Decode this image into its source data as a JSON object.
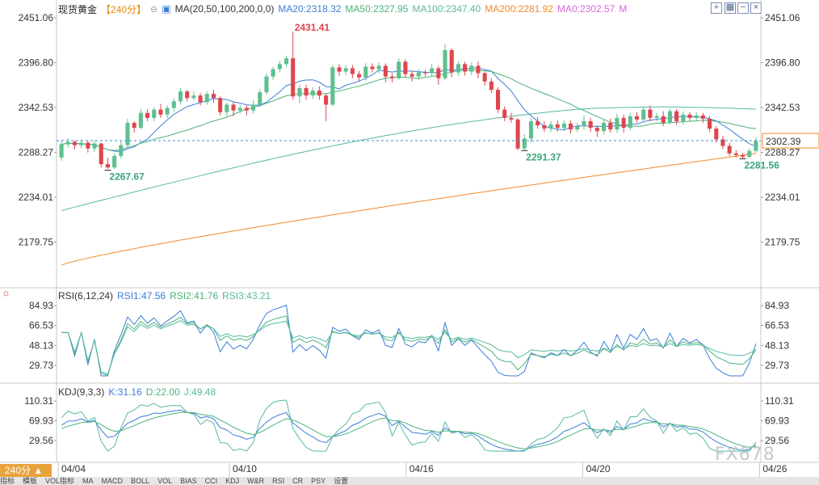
{
  "header": {
    "symbol": "现货黄金",
    "period": "【240分】",
    "ma_label": "MA(20,50,100,200,0,0)",
    "ma20": "MA20:2318.32",
    "ma50": "MA50:2327.95",
    "ma100": "MA100:2347.40",
    "ma200": "MA200:2281.92",
    "ma0": "MA0:2302.57",
    "m": "M"
  },
  "rsi_header": {
    "label": "RSI(6,12,24)",
    "rsi1": "RSI1:47.56",
    "rsi2": "RSI2:41.76",
    "rsi3": "RSI3:43.21"
  },
  "kdj_header": {
    "label": "KDJ(9,3,3)",
    "k": "K:31.16",
    "d": "D:22.00",
    "j": "J:49.48"
  },
  "period_button": "240分 ▲",
  "watermark": "FX678",
  "bottom_tabs": [
    "指标",
    "模板",
    "VOL指标",
    "MA",
    "MACD",
    "BOLL",
    "VOL",
    "BIAS",
    "CCI",
    "KDJ",
    "W&R",
    "RSI",
    "CR",
    "PSY",
    "设置"
  ],
  "colors": {
    "up": "#5fbf8f",
    "down": "#e0454c",
    "ma20": "#3b7dd8",
    "ma50": "#4cb37a",
    "ma100": "#56b8a4",
    "ma200": "#f08a2c",
    "price_line": "#3a8fd0"
  },
  "chart_data": [
    {
      "type": "candlestick",
      "price_axis": [
        "2451.06",
        "2396.80",
        "2342.53",
        "2288.27",
        "2234.01",
        "2179.75"
      ],
      "x_ticks": [
        "04/04",
        "04/10",
        "04/16",
        "04/20",
        "04/26"
      ],
      "current_price": "2302.39",
      "annotations": [
        {
          "text": "2431.41",
          "kind": "high"
        },
        {
          "text": "2267.67",
          "kind": "low"
        },
        {
          "text": "2291.37",
          "kind": "low"
        },
        {
          "text": "2281.56",
          "kind": "low"
        }
      ],
      "candles": [
        [
          2282,
          2298,
          2278,
          2302
        ],
        [
          2298,
          2301,
          2294,
          2305
        ],
        [
          2301,
          2297,
          2292,
          2303
        ],
        [
          2297,
          2300,
          2293,
          2304
        ],
        [
          2300,
          2293,
          2288,
          2302
        ],
        [
          2293,
          2299,
          2289,
          2303
        ],
        [
          2299,
          2274,
          2270,
          2300
        ],
        [
          2274,
          2270,
          2268,
          2282
        ],
        [
          2270,
          2284,
          2268,
          2287
        ],
        [
          2284,
          2297,
          2281,
          2302
        ],
        [
          2297,
          2324,
          2295,
          2329
        ],
        [
          2324,
          2318,
          2312,
          2326
        ],
        [
          2318,
          2336,
          2316,
          2341
        ],
        [
          2336,
          2330,
          2326,
          2340
        ],
        [
          2330,
          2340,
          2326,
          2343
        ],
        [
          2340,
          2334,
          2330,
          2347
        ],
        [
          2334,
          2342,
          2330,
          2345
        ],
        [
          2342,
          2350,
          2338,
          2354
        ],
        [
          2350,
          2362,
          2346,
          2366
        ],
        [
          2362,
          2354,
          2350,
          2364
        ],
        [
          2354,
          2357,
          2351,
          2362
        ],
        [
          2357,
          2349,
          2345,
          2360
        ],
        [
          2349,
          2359,
          2346,
          2362
        ],
        [
          2359,
          2354,
          2348,
          2364
        ],
        [
          2354,
          2337,
          2333,
          2356
        ],
        [
          2337,
          2346,
          2332,
          2349
        ],
        [
          2346,
          2339,
          2332,
          2350
        ],
        [
          2339,
          2342,
          2335,
          2346
        ],
        [
          2342,
          2339,
          2333,
          2345
        ],
        [
          2339,
          2346,
          2335,
          2351
        ],
        [
          2346,
          2361,
          2343,
          2364
        ],
        [
          2361,
          2380,
          2358,
          2384
        ],
        [
          2380,
          2389,
          2376,
          2392
        ],
        [
          2389,
          2395,
          2385,
          2399
        ],
        [
          2395,
          2402,
          2391,
          2405
        ],
        [
          2402,
          2356,
          2352,
          2431
        ],
        [
          2356,
          2366,
          2348,
          2370
        ],
        [
          2366,
          2357,
          2352,
          2370
        ],
        [
          2357,
          2363,
          2353,
          2367
        ],
        [
          2363,
          2357,
          2352,
          2368
        ],
        [
          2357,
          2346,
          2326,
          2360
        ],
        [
          2346,
          2391,
          2344,
          2394
        ],
        [
          2391,
          2386,
          2381,
          2395
        ],
        [
          2386,
          2390,
          2382,
          2394
        ],
        [
          2390,
          2383,
          2378,
          2394
        ],
        [
          2383,
          2379,
          2374,
          2387
        ],
        [
          2379,
          2392,
          2375,
          2396
        ],
        [
          2392,
          2389,
          2385,
          2396
        ],
        [
          2389,
          2393,
          2384,
          2397
        ],
        [
          2393,
          2380,
          2373,
          2396
        ],
        [
          2380,
          2378,
          2373,
          2384
        ],
        [
          2378,
          2398,
          2376,
          2402
        ],
        [
          2398,
          2383,
          2379,
          2401
        ],
        [
          2383,
          2380,
          2374,
          2387
        ],
        [
          2380,
          2385,
          2376,
          2389
        ],
        [
          2385,
          2384,
          2380,
          2388
        ],
        [
          2384,
          2390,
          2380,
          2395
        ],
        [
          2390,
          2378,
          2370,
          2393
        ],
        [
          2378,
          2412,
          2376,
          2419
        ],
        [
          2412,
          2385,
          2379,
          2414
        ],
        [
          2385,
          2395,
          2381,
          2399
        ],
        [
          2395,
          2386,
          2381,
          2398
        ],
        [
          2386,
          2393,
          2382,
          2397
        ],
        [
          2393,
          2384,
          2378,
          2398
        ],
        [
          2384,
          2374,
          2369,
          2386
        ],
        [
          2374,
          2364,
          2360,
          2378
        ],
        [
          2364,
          2340,
          2336,
          2367
        ],
        [
          2340,
          2330,
          2326,
          2344
        ],
        [
          2330,
          2328,
          2324,
          2336
        ],
        [
          2328,
          2293,
          2291,
          2330
        ],
        [
          2293,
          2305,
          2291,
          2310
        ],
        [
          2305,
          2326,
          2300,
          2330
        ],
        [
          2326,
          2321,
          2317,
          2331
        ],
        [
          2321,
          2317,
          2313,
          2326
        ],
        [
          2317,
          2322,
          2313,
          2326
        ],
        [
          2322,
          2318,
          2313,
          2327
        ],
        [
          2318,
          2323,
          2314,
          2327
        ],
        [
          2323,
          2316,
          2311,
          2327
        ],
        [
          2316,
          2320,
          2313,
          2324
        ],
        [
          2320,
          2326,
          2316,
          2333
        ],
        [
          2326,
          2318,
          2313,
          2330
        ],
        [
          2318,
          2314,
          2307,
          2321
        ],
        [
          2314,
          2324,
          2310,
          2328
        ],
        [
          2324,
          2316,
          2312,
          2329
        ],
        [
          2316,
          2330,
          2312,
          2335
        ],
        [
          2330,
          2318,
          2312,
          2334
        ],
        [
          2318,
          2332,
          2315,
          2336
        ],
        [
          2332,
          2328,
          2324,
          2337
        ],
        [
          2328,
          2340,
          2326,
          2343
        ],
        [
          2340,
          2330,
          2326,
          2345
        ],
        [
          2330,
          2332,
          2326,
          2336
        ],
        [
          2332,
          2324,
          2320,
          2338
        ],
        [
          2324,
          2338,
          2322,
          2341
        ],
        [
          2338,
          2326,
          2322,
          2341
        ],
        [
          2326,
          2334,
          2322,
          2338
        ],
        [
          2334,
          2330,
          2326,
          2337
        ],
        [
          2330,
          2333,
          2326,
          2337
        ],
        [
          2333,
          2329,
          2324,
          2336
        ],
        [
          2329,
          2317,
          2313,
          2332
        ],
        [
          2317,
          2304,
          2300,
          2320
        ],
        [
          2304,
          2296,
          2292,
          2308
        ],
        [
          2296,
          2287,
          2284,
          2300
        ],
        [
          2287,
          2285,
          2282,
          2291
        ],
        [
          2285,
          2283,
          2281,
          2288
        ],
        [
          2283,
          2290,
          2281,
          2293
        ],
        [
          2290,
          2302,
          2288,
          2306
        ]
      ]
    },
    {
      "type": "line",
      "name": "RSI",
      "y_axis": [
        "84.93",
        "66.53",
        "48.13",
        "29.73"
      ]
    },
    {
      "type": "line",
      "name": "KDJ",
      "y_axis": [
        "110.31",
        "69.93",
        "29.56"
      ]
    }
  ]
}
